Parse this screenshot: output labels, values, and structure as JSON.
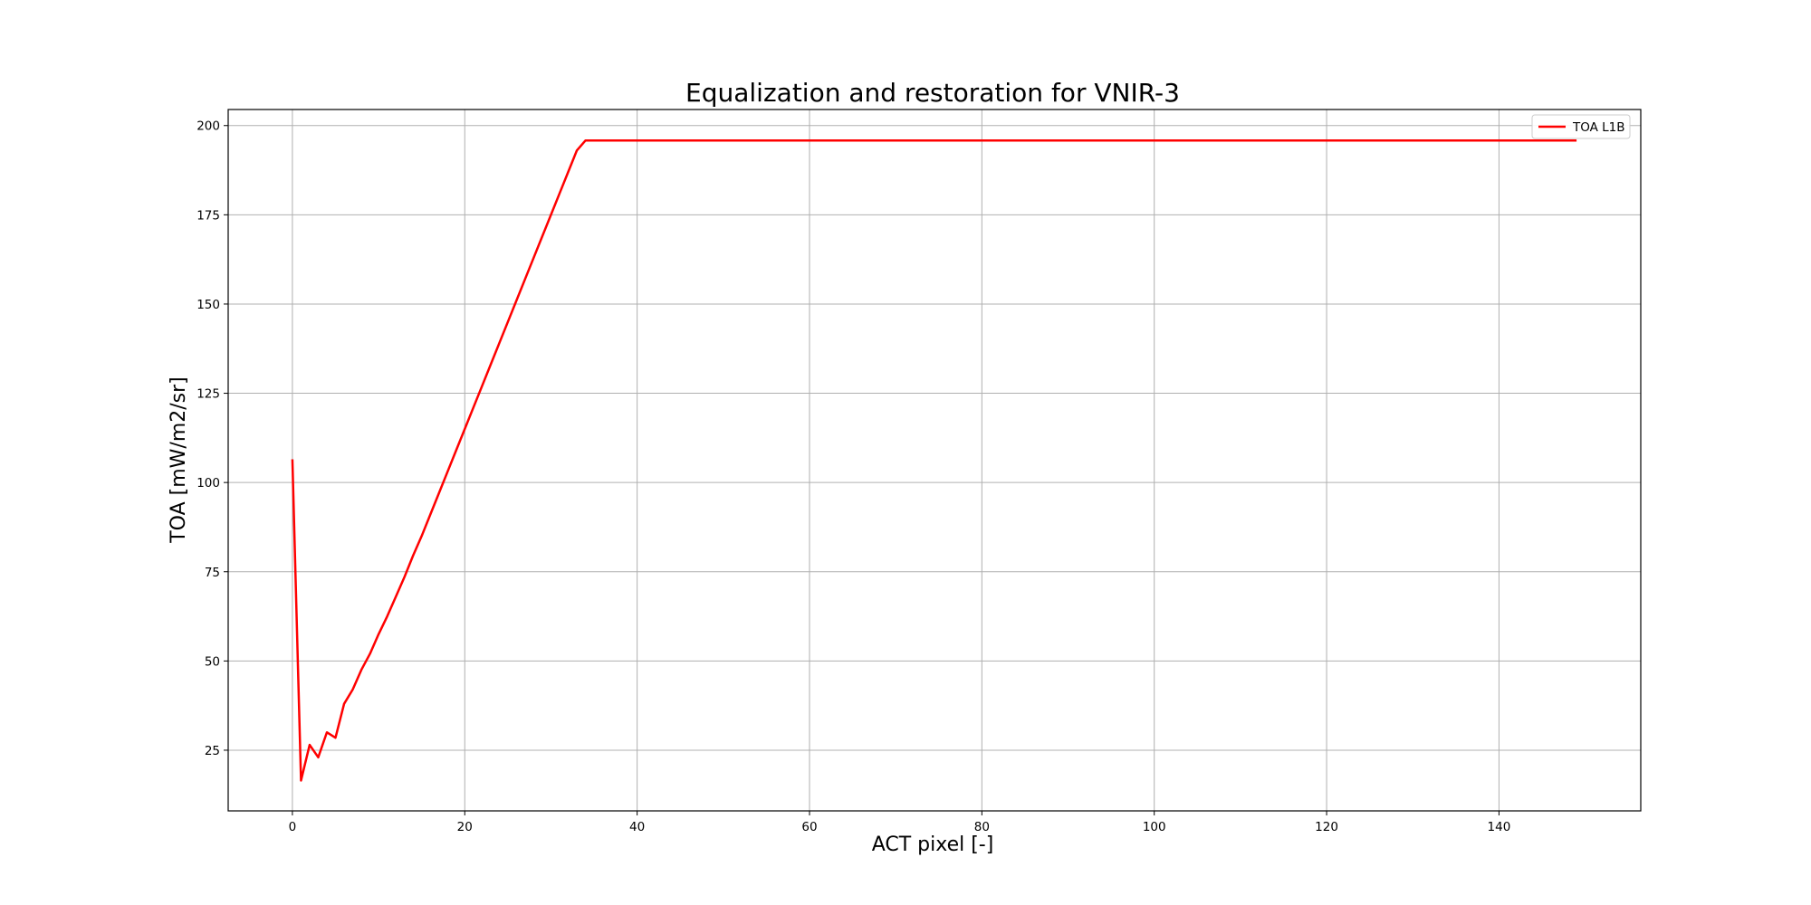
{
  "chart_data": {
    "type": "line",
    "title": "Equalization and restoration for VNIR-3",
    "xlabel": "ACT pixel [-]",
    "ylabel": "TOA [mW/m2/sr]",
    "xlim": [
      -7.45,
      156.45
    ],
    "ylim": [
      8.0,
      204.5
    ],
    "xticks": [
      0,
      20,
      40,
      60,
      80,
      100,
      120,
      140
    ],
    "yticks": [
      25,
      50,
      75,
      100,
      125,
      150,
      175,
      200
    ],
    "grid": true,
    "legend_position": "top-right",
    "series": [
      {
        "name": "TOA L1B",
        "color": "#ff0000",
        "x": [
          0,
          1,
          2,
          3,
          4,
          5,
          6,
          7,
          8,
          9,
          10,
          11,
          12,
          13,
          14,
          15,
          16,
          17,
          18,
          19,
          20,
          21,
          22,
          23,
          24,
          25,
          26,
          27,
          28,
          29,
          30,
          31,
          32,
          33,
          34,
          35,
          36,
          37,
          40,
          60,
          80,
          100,
          120,
          140,
          149
        ],
        "y": [
          106.5,
          16.5,
          26.5,
          23.0,
          30.0,
          28.5,
          38.0,
          42.0,
          47.5,
          52.0,
          57.5,
          62.5,
          68.0,
          73.5,
          79.5,
          85.0,
          91.0,
          97.0,
          103.0,
          109.0,
          115.0,
          121.0,
          127.0,
          133.0,
          139.0,
          145.0,
          151.0,
          157.0,
          163.0,
          169.0,
          175.0,
          181.0,
          187.0,
          193.0,
          195.8,
          195.8,
          195.8,
          195.8,
          195.8,
          195.8,
          195.8,
          195.8,
          195.8,
          195.8,
          195.8
        ]
      }
    ]
  }
}
